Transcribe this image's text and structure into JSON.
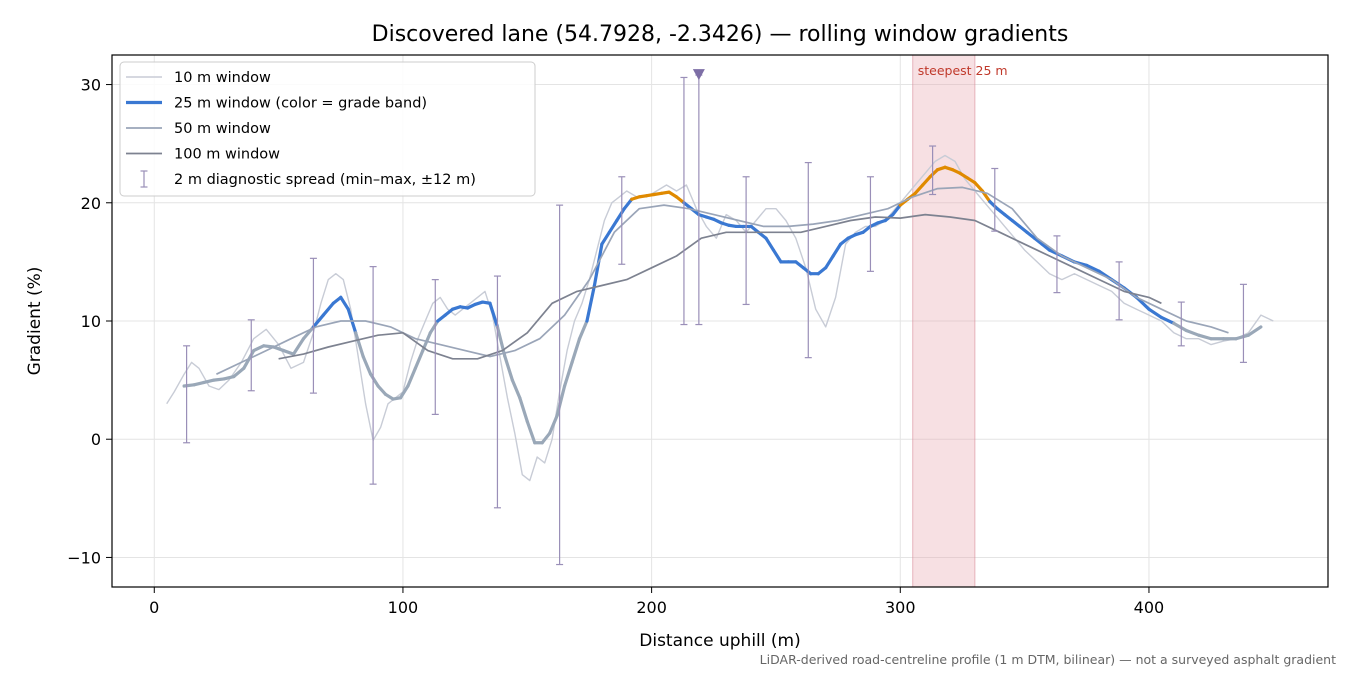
{
  "chart_data": {
    "type": "line",
    "title": "Discovered lane (54.7928, -2.3426) — rolling window gradients",
    "xlabel": "Distance uphill (m)",
    "ylabel": "Gradient (%)",
    "xlim": [
      -17,
      472
    ],
    "ylim": [
      -12.5,
      32.5
    ],
    "xticks": [
      0,
      100,
      200,
      300,
      400
    ],
    "yticks": [
      -10,
      0,
      10,
      20,
      30
    ],
    "ytick_labels": [
      "−10",
      "0",
      "10",
      "20",
      "30"
    ],
    "grid": true,
    "legend_position": "upper-left",
    "footnote": "LiDAR-derived road-centreline profile (1 m DTM, bilinear) — not a surveyed asphalt gradient",
    "highlight_band": {
      "label": "steepest 25 m",
      "x0": 305,
      "x1": 330,
      "color": "#e8a6b0"
    },
    "marker": {
      "x": 219,
      "y": 30.8,
      "shape": "triangle-down",
      "color": "#7d6ea6"
    },
    "grade_band_colors": {
      "low": "#9aa8b8",
      "mid": "#3a78d2",
      "high": "#e08a00"
    },
    "series": [
      {
        "name": "10 m window",
        "style": "thin",
        "color": "#c8ccd6",
        "x": [
          5,
          8,
          12,
          15,
          18,
          22,
          26,
          30,
          35,
          40,
          45,
          50,
          55,
          60,
          64,
          67,
          70,
          73,
          76,
          79,
          82,
          85,
          88,
          91,
          94,
          97,
          100,
          103,
          106,
          109,
          112,
          115,
          118,
          121,
          124,
          127,
          130,
          133,
          136,
          139,
          142,
          145,
          148,
          151,
          154,
          157,
          160,
          163,
          166,
          169,
          172,
          175,
          178,
          181,
          184,
          187,
          190,
          194,
          198,
          202,
          206,
          210,
          214,
          218,
          222,
          226,
          230,
          234,
          238,
          242,
          246,
          250,
          254,
          258,
          262,
          266,
          270,
          274,
          278,
          282,
          286,
          290,
          294,
          298,
          302,
          306,
          310,
          314,
          318,
          322,
          326,
          330,
          334,
          338,
          342,
          346,
          350,
          355,
          360,
          365,
          370,
          375,
          380,
          385,
          390,
          395,
          400,
          405,
          410,
          415,
          420,
          425,
          430,
          435,
          440,
          445,
          450
        ],
        "y": [
          3.0,
          4.0,
          5.5,
          6.5,
          6.0,
          4.5,
          4.2,
          5.0,
          6.5,
          8.5,
          9.3,
          8.0,
          6.0,
          6.5,
          9.0,
          11.5,
          13.5,
          14.0,
          13.5,
          11.0,
          7.0,
          3.0,
          -0.1,
          1.0,
          3.0,
          3.5,
          4.0,
          6.5,
          8.5,
          10.0,
          11.5,
          12.0,
          11.0,
          10.5,
          11.0,
          11.5,
          12.0,
          12.5,
          10.5,
          7.0,
          3.5,
          0.5,
          -3.0,
          -3.5,
          -1.5,
          -2.0,
          0.0,
          4.0,
          7.5,
          10.0,
          11.5,
          13.5,
          16.0,
          18.5,
          20.0,
          20.5,
          21.0,
          20.5,
          20.5,
          21.0,
          21.5,
          21.0,
          21.5,
          19.5,
          18.0,
          17.0,
          19.0,
          18.5,
          17.5,
          18.5,
          19.5,
          19.5,
          18.5,
          17.0,
          14.5,
          11.0,
          9.5,
          12.0,
          16.5,
          17.5,
          18.0,
          18.0,
          18.5,
          19.5,
          20.5,
          21.5,
          22.5,
          23.5,
          24.0,
          23.5,
          22.0,
          21.0,
          20.0,
          19.0,
          18.0,
          17.0,
          16.0,
          15.0,
          14.0,
          13.5,
          14.0,
          13.5,
          13.0,
          12.5,
          11.5,
          11.0,
          10.5,
          10.0,
          9.0,
          8.5,
          8.5,
          8.0,
          8.3,
          8.5,
          9.0,
          10.5,
          10.0
        ]
      },
      {
        "name": "25 m window (color = grade band)",
        "style": "bold",
        "color": "#3a78d2",
        "band_thresholds": [
          10,
          20
        ],
        "x": [
          12,
          16,
          20,
          24,
          28,
          32,
          36,
          40,
          44,
          48,
          52,
          56,
          60,
          64,
          68,
          72,
          75,
          78,
          81,
          84,
          87,
          90,
          93,
          96,
          99,
          102,
          105,
          108,
          111,
          114,
          117,
          120,
          123,
          126,
          129,
          132,
          135,
          138,
          141,
          144,
          147,
          150,
          153,
          156,
          159,
          162,
          165,
          168,
          171,
          174,
          177,
          180,
          183,
          186,
          189,
          192,
          195,
          198,
          201,
          204,
          207,
          210,
          213,
          216,
          219,
          222,
          225,
          228,
          231,
          234,
          237,
          240,
          243,
          246,
          249,
          252,
          255,
          258,
          261,
          264,
          267,
          270,
          273,
          276,
          279,
          282,
          285,
          288,
          291,
          294,
          297,
          300,
          303,
          306,
          309,
          312,
          315,
          318,
          321,
          324,
          327,
          330,
          333,
          336,
          339,
          342,
          345,
          348,
          351,
          354,
          357,
          360,
          365,
          370,
          375,
          380,
          385,
          390,
          395,
          400,
          405,
          410,
          415,
          420,
          425,
          430,
          435,
          440,
          445
        ],
        "y": [
          4.5,
          4.6,
          4.8,
          5.0,
          5.1,
          5.3,
          6.0,
          7.5,
          7.9,
          7.8,
          7.5,
          7.2,
          8.5,
          9.5,
          10.5,
          11.5,
          12.0,
          11.0,
          9.0,
          7.0,
          5.5,
          4.5,
          3.8,
          3.4,
          3.5,
          4.5,
          6.0,
          7.5,
          9.0,
          10.0,
          10.5,
          11.0,
          11.2,
          11.1,
          11.4,
          11.6,
          11.5,
          9.5,
          7.0,
          5.0,
          3.5,
          1.5,
          -0.3,
          -0.3,
          0.5,
          2.0,
          4.5,
          6.5,
          8.5,
          10.0,
          13.0,
          16.5,
          17.5,
          18.5,
          19.5,
          20.3,
          20.5,
          20.6,
          20.7,
          20.8,
          20.9,
          20.5,
          20.0,
          19.5,
          19.0,
          18.8,
          18.6,
          18.3,
          18.1,
          18.0,
          18.0,
          18.0,
          17.5,
          17.0,
          16.0,
          15.0,
          15.0,
          15.0,
          14.5,
          14.0,
          14.0,
          14.5,
          15.5,
          16.5,
          17.0,
          17.3,
          17.5,
          18.0,
          18.3,
          18.5,
          19.0,
          19.8,
          20.3,
          20.8,
          21.5,
          22.2,
          22.8,
          23.0,
          22.8,
          22.5,
          22.1,
          21.7,
          21.0,
          20.1,
          19.5,
          19.0,
          18.5,
          18.0,
          17.5,
          17.0,
          16.5,
          16.0,
          15.5,
          15.0,
          14.7,
          14.2,
          13.5,
          12.8,
          12.0,
          11.0,
          10.3,
          9.8,
          9.2,
          8.8,
          8.5,
          8.5,
          8.5,
          8.8,
          9.5
        ]
      },
      {
        "name": "50 m window",
        "style": "medium",
        "color": "#9aa5b8",
        "x": [
          25,
          35,
          45,
          55,
          65,
          75,
          85,
          95,
          105,
          115,
          125,
          135,
          145,
          155,
          165,
          175,
          185,
          195,
          205,
          215,
          225,
          235,
          245,
          255,
          265,
          275,
          285,
          295,
          305,
          315,
          325,
          335,
          345,
          355,
          365,
          375,
          385,
          395,
          405,
          415,
          425,
          432
        ],
        "y": [
          5.5,
          6.5,
          7.5,
          8.5,
          9.5,
          10.0,
          10.0,
          9.5,
          8.5,
          8.0,
          7.5,
          7.0,
          7.5,
          8.5,
          10.5,
          13.5,
          17.5,
          19.5,
          19.8,
          19.5,
          19.0,
          18.5,
          18.0,
          18.0,
          18.2,
          18.5,
          19.0,
          19.5,
          20.5,
          21.2,
          21.3,
          20.8,
          19.5,
          17.0,
          15.5,
          14.5,
          13.5,
          12.0,
          11.0,
          10.0,
          9.5,
          9.0
        ]
      },
      {
        "name": "100 m window",
        "style": "medium",
        "color": "#7d8290",
        "x": [
          50,
          60,
          70,
          80,
          90,
          100,
          110,
          120,
          130,
          140,
          150,
          160,
          170,
          180,
          190,
          200,
          210,
          220,
          230,
          240,
          250,
          260,
          270,
          280,
          290,
          300,
          310,
          320,
          330,
          340,
          350,
          360,
          370,
          380,
          390,
          400,
          405
        ],
        "y": [
          6.8,
          7.2,
          7.8,
          8.3,
          8.8,
          9.0,
          7.5,
          6.8,
          6.8,
          7.5,
          9.0,
          11.5,
          12.5,
          13.0,
          13.5,
          14.5,
          15.5,
          17.0,
          17.5,
          17.5,
          17.5,
          17.5,
          18.0,
          18.5,
          18.8,
          18.7,
          19.0,
          18.8,
          18.5,
          17.5,
          16.5,
          15.5,
          14.5,
          13.5,
          12.5,
          12.0,
          11.5
        ]
      },
      {
        "name": "2 m diagnostic spread (min–max, ±12 m)",
        "style": "errorbar",
        "color": "#9a8fb8",
        "x": [
          13,
          39,
          64,
          88,
          113,
          138,
          163,
          188,
          213,
          219,
          238,
          263,
          288,
          313,
          338,
          363,
          388,
          413,
          438
        ],
        "ymin": [
          -0.3,
          4.1,
          3.9,
          -3.8,
          2.1,
          -5.8,
          -10.6,
          14.8,
          9.7,
          9.7,
          11.4,
          6.9,
          14.2,
          20.7,
          17.6,
          12.4,
          10.1,
          7.9,
          6.5
        ],
        "ymax": [
          7.9,
          10.1,
          15.3,
          14.6,
          13.5,
          13.8,
          19.8,
          22.2,
          30.6,
          30.8,
          22.2,
          23.4,
          22.2,
          24.8,
          22.9,
          17.2,
          15.0,
          11.6,
          13.1
        ]
      }
    ]
  }
}
